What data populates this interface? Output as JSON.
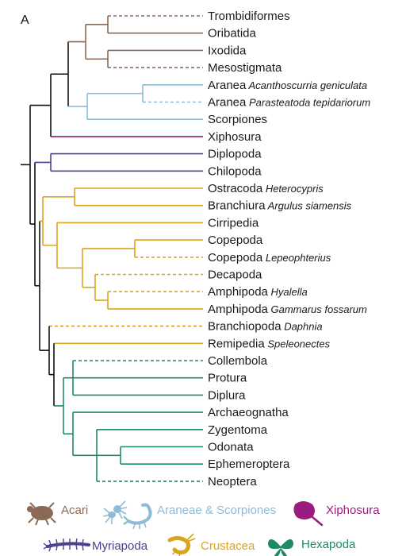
{
  "panel_label": "A",
  "colors": {
    "acari": "#8B6A55",
    "araneae": "#8DBCD6",
    "xiphosura": "#9A1C7E",
    "myriapoda": "#50408E",
    "crustacea": "#D9A61B",
    "hexapoda": "#1F8A63",
    "backbone": "#111111"
  },
  "taxa": [
    {
      "name": "Trombidiformes",
      "species": ""
    },
    {
      "name": "Oribatida",
      "species": ""
    },
    {
      "name": "Ixodida",
      "species": ""
    },
    {
      "name": "Mesostigmata",
      "species": ""
    },
    {
      "name": "Aranea",
      "species": "Acanthoscurria geniculata"
    },
    {
      "name": "Aranea",
      "species": "Parasteatoda tepidariorum"
    },
    {
      "name": "Scorpiones",
      "species": ""
    },
    {
      "name": "Xiphosura",
      "species": ""
    },
    {
      "name": "Diplopoda",
      "species": ""
    },
    {
      "name": "Chilopoda",
      "species": ""
    },
    {
      "name": "Ostracoda",
      "species": "Heterocypris"
    },
    {
      "name": "Branchiura",
      "species": "Argulus siamensis"
    },
    {
      "name": "Cirripedia",
      "species": ""
    },
    {
      "name": "Copepoda",
      "species": ""
    },
    {
      "name": "Copepoda",
      "species": "Lepeophterius"
    },
    {
      "name": "Decapoda",
      "species": ""
    },
    {
      "name": "Amphipoda",
      "species": "Hyalella"
    },
    {
      "name": "Amphipoda",
      "species": "Gammarus fossarum"
    },
    {
      "name": "Branchiopoda",
      "species": "Daphnia"
    },
    {
      "name": "Remipedia",
      "species": "Speleonectes"
    },
    {
      "name": "Collembola",
      "species": ""
    },
    {
      "name": "Protura",
      "species": ""
    },
    {
      "name": "Diplura",
      "species": ""
    },
    {
      "name": "Archaeognatha",
      "species": ""
    },
    {
      "name": "Zygentoma",
      "species": ""
    },
    {
      "name": "Odonata",
      "species": ""
    },
    {
      "name": "Ephemeroptera",
      "species": ""
    },
    {
      "name": "Neoptera",
      "species": ""
    }
  ],
  "legend": [
    {
      "label": "Acari",
      "color_key": "acari",
      "icon": "mite-icon"
    },
    {
      "label": "Araneae & Scorpiones",
      "color_key": "araneae",
      "icon": "spider-scorpion-icon"
    },
    {
      "label": "Xiphosura",
      "color_key": "xiphosura",
      "icon": "horseshoe-crab-icon"
    },
    {
      "label": "Myriapoda",
      "color_key": "myriapoda",
      "icon": "centipede-icon"
    },
    {
      "label": "Crustacea",
      "color_key": "crustacea",
      "icon": "shrimp-icon"
    },
    {
      "label": "Hexapoda",
      "color_key": "hexapoda",
      "icon": "butterfly-icon"
    }
  ]
}
